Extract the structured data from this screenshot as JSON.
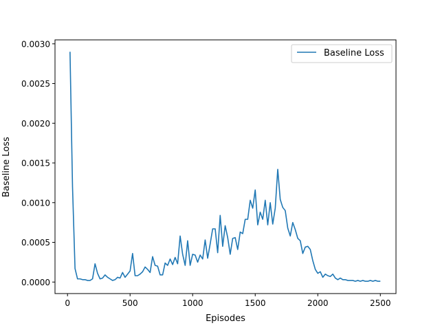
{
  "chart_data": {
    "type": "line",
    "title": "",
    "xlabel": "Episodes",
    "ylabel": "Baseline Loss",
    "xlim": [
      -100,
      2625
    ],
    "ylim": [
      -0.000145,
      0.00305
    ],
    "x_ticks": [
      0,
      500,
      1000,
      1500,
      2000,
      2500
    ],
    "x_tick_labels": [
      "0",
      "500",
      "1000",
      "1500",
      "2000",
      "2500"
    ],
    "y_ticks": [
      0.0,
      0.0005,
      0.001,
      0.0015,
      0.002,
      0.0025,
      0.003
    ],
    "y_tick_labels": [
      "0.0000",
      "0.0005",
      "0.0010",
      "0.0015",
      "0.0020",
      "0.0025",
      "0.0030"
    ],
    "grid": false,
    "legend_position": "upper right",
    "series": [
      {
        "name": "Baseline Loss",
        "color": "#1f77b4",
        "x": [
          20,
          40,
          60,
          80,
          100,
          120,
          140,
          160,
          180,
          200,
          220,
          240,
          260,
          280,
          300,
          320,
          340,
          360,
          380,
          400,
          420,
          440,
          460,
          480,
          500,
          520,
          540,
          560,
          580,
          600,
          620,
          640,
          660,
          680,
          700,
          720,
          740,
          760,
          780,
          800,
          820,
          840,
          860,
          880,
          900,
          920,
          940,
          960,
          980,
          1000,
          1020,
          1040,
          1060,
          1080,
          1100,
          1120,
          1140,
          1160,
          1180,
          1200,
          1220,
          1240,
          1260,
          1280,
          1300,
          1320,
          1340,
          1360,
          1380,
          1400,
          1420,
          1440,
          1460,
          1480,
          1500,
          1520,
          1540,
          1560,
          1580,
          1600,
          1620,
          1640,
          1660,
          1680,
          1700,
          1720,
          1740,
          1760,
          1780,
          1800,
          1820,
          1840,
          1860,
          1880,
          1900,
          1920,
          1940,
          1960,
          1980,
          2000,
          2020,
          2040,
          2060,
          2080,
          2100,
          2120,
          2140,
          2160,
          2180,
          2200,
          2220,
          2240,
          2260,
          2280,
          2300,
          2320,
          2340,
          2360,
          2380,
          2400,
          2420,
          2440,
          2460,
          2480,
          2500
        ],
        "values": [
          0.0029,
          0.0012,
          0.00017,
          4e-05,
          4e-05,
          3e-05,
          3e-05,
          2e-05,
          2e-05,
          4e-05,
          0.00023,
          0.00011,
          4e-05,
          5e-05,
          9e-05,
          6e-05,
          4e-05,
          2e-05,
          3e-05,
          6e-05,
          5e-05,
          0.00012,
          6e-05,
          0.0001,
          0.00014,
          0.00036,
          8e-05,
          8e-05,
          0.0001,
          0.00013,
          0.00019,
          0.00016,
          0.00012,
          0.00032,
          0.00021,
          0.0002,
          9e-05,
          9e-05,
          0.00024,
          0.00021,
          0.00029,
          0.00022,
          0.00031,
          0.00023,
          0.00058,
          0.00035,
          0.00021,
          0.00052,
          0.00021,
          0.00035,
          0.00034,
          0.00025,
          0.00034,
          0.00029,
          0.00053,
          0.0003,
          0.00048,
          0.00067,
          0.00067,
          0.00037,
          0.00084,
          0.00045,
          0.00071,
          0.00056,
          0.00035,
          0.00055,
          0.00056,
          0.00041,
          0.00063,
          0.00061,
          0.00079,
          0.00079,
          0.00103,
          0.00093,
          0.00116,
          0.00072,
          0.00088,
          0.00079,
          0.00103,
          0.00072,
          0.001,
          0.00073,
          0.00093,
          0.00142,
          0.00104,
          0.00094,
          0.0009,
          0.00068,
          0.00058,
          0.00075,
          0.00066,
          0.00055,
          0.00052,
          0.00036,
          0.00044,
          0.00045,
          0.00041,
          0.00027,
          0.00016,
          0.00011,
          0.00013,
          6e-05,
          0.0001,
          8e-05,
          7e-05,
          0.0001,
          5e-05,
          3e-05,
          5e-05,
          3e-05,
          3e-05,
          2e-05,
          2e-05,
          2e-05,
          1e-05,
          2e-05,
          1e-05,
          2e-05,
          1e-05,
          1e-05,
          2e-05,
          1e-05,
          2e-05,
          1e-05,
          1e-05
        ]
      }
    ]
  }
}
